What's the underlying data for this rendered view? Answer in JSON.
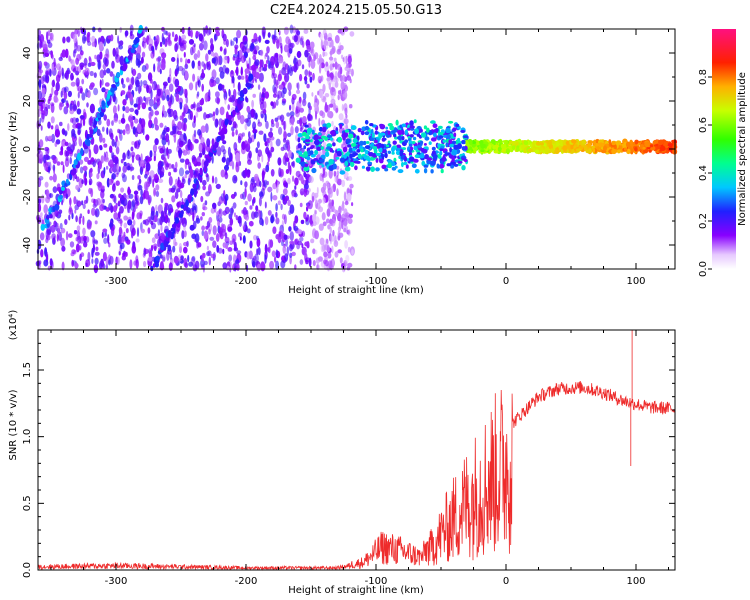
{
  "title": "C2E4.2024.215.05.50.G13",
  "colors": {
    "snr_line": "#ee2b2b",
    "frame": "#000000",
    "background": "#ffffff"
  },
  "chart_data": [
    {
      "type": "heatmap",
      "title": "C2E4.2024.215.05.50.G13",
      "xlabel": "Height of straight line (km)",
      "ylabel": "Frequency (Hz)",
      "xlim": [
        -360,
        130
      ],
      "ylim": [
        -50,
        50
      ],
      "x_ticks": [
        {
          "value": -300,
          "label": "-300"
        },
        {
          "value": -200,
          "label": "-200"
        },
        {
          "value": -100,
          "label": "-100"
        },
        {
          "value": 0,
          "label": "0"
        },
        {
          "value": 100,
          "label": "100"
        }
      ],
      "y_ticks": [
        {
          "value": -40,
          "label": "-40"
        },
        {
          "value": -20,
          "label": "-20"
        },
        {
          "value": 0,
          "label": "0"
        },
        {
          "value": 20,
          "label": "20"
        },
        {
          "value": 40,
          "label": "40"
        }
      ],
      "colorbar": {
        "label": "Normalized spectral amplitude",
        "range": [
          0,
          1
        ],
        "ticks": [
          {
            "value": 0.0,
            "label": "0.0"
          },
          {
            "value": 0.2,
            "label": "0.2"
          },
          {
            "value": 0.4,
            "label": "0.4"
          },
          {
            "value": 0.6,
            "label": "0.6"
          },
          {
            "value": 0.8,
            "label": "0.8"
          }
        ]
      },
      "features": {
        "noise_region_x": [
          -360,
          -118
        ],
        "diagonal_tracks": [
          {
            "x_start": -355,
            "y_start": -33,
            "x_end": -280,
            "y_end": 50
          },
          {
            "x_start": -272,
            "y_start": -50,
            "x_end": -195,
            "y_end": 30
          }
        ],
        "signal_band": {
          "x_start": -160,
          "x_end": 130,
          "center_hz": 1,
          "strength": "increasing with height"
        }
      }
    },
    {
      "type": "line",
      "xlabel": "Height of straight line (km)",
      "ylabel": "SNR (10 * v/v)",
      "y_multiplier": "(x10⁴)",
      "xlim": [
        -360,
        130
      ],
      "ylim": [
        0,
        1.8
      ],
      "x_ticks": [
        {
          "value": -300,
          "label": "-300"
        },
        {
          "value": -200,
          "label": "-200"
        },
        {
          "value": -100,
          "label": "-100"
        },
        {
          "value": 0,
          "label": "0"
        },
        {
          "value": 100,
          "label": "100"
        }
      ],
      "y_ticks": [
        {
          "value": 0.0,
          "label": "0.0"
        },
        {
          "value": 0.5,
          "label": "0.5"
        },
        {
          "value": 1.0,
          "label": "1.0"
        },
        {
          "value": 1.5,
          "label": "1.5"
        }
      ],
      "envelope": [
        {
          "x": -360,
          "y": 0.03
        },
        {
          "x": -300,
          "y": 0.04
        },
        {
          "x": -200,
          "y": 0.02
        },
        {
          "x": -130,
          "y": 0.02
        },
        {
          "x": -110,
          "y": 0.06
        },
        {
          "x": -95,
          "y": 0.18
        },
        {
          "x": -80,
          "y": 0.15
        },
        {
          "x": -65,
          "y": 0.1
        },
        {
          "x": -50,
          "y": 0.35
        },
        {
          "x": -35,
          "y": 0.6
        },
        {
          "x": -20,
          "y": 0.8
        },
        {
          "x": -5,
          "y": 1.0
        },
        {
          "x": 10,
          "y": 1.15
        },
        {
          "x": 25,
          "y": 1.3
        },
        {
          "x": 40,
          "y": 1.36
        },
        {
          "x": 60,
          "y": 1.37
        },
        {
          "x": 75,
          "y": 1.33
        },
        {
          "x": 90,
          "y": 1.27
        },
        {
          "x": 110,
          "y": 1.22
        },
        {
          "x": 130,
          "y": 1.21
        }
      ],
      "spikes": [
        {
          "x": 97,
          "y": 1.8
        },
        {
          "x": 96,
          "y": 0.78
        }
      ]
    }
  ]
}
